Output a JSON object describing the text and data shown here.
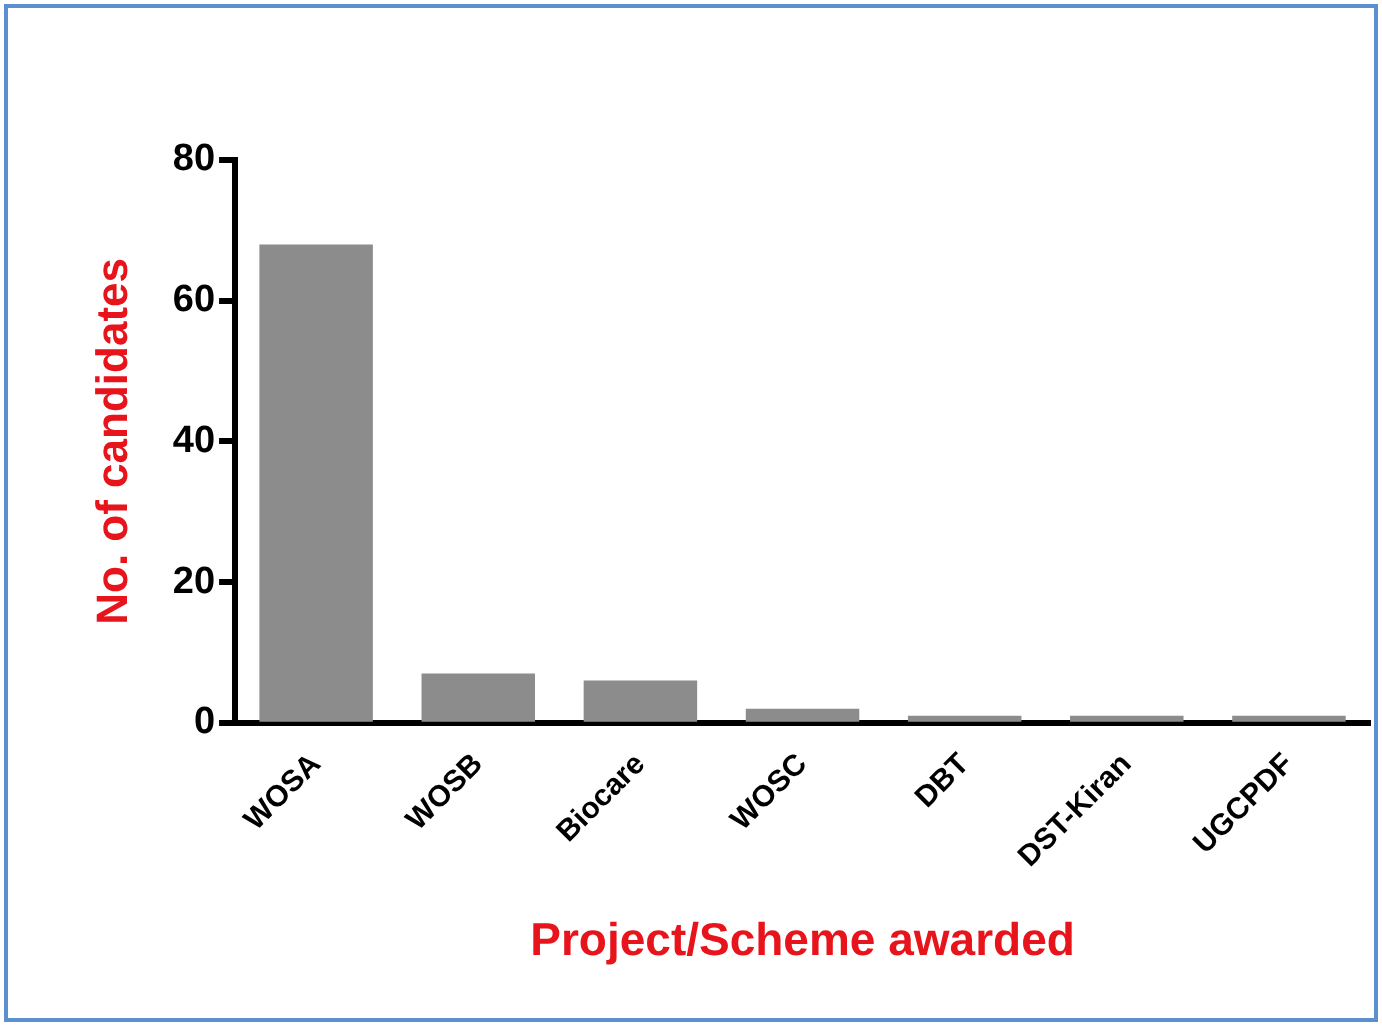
{
  "chart_data": {
    "type": "bar",
    "xlabel": "Project/Scheme awarded",
    "ylabel": "No. of candidates",
    "categories": [
      "WOSA",
      "WOSB",
      "Biocare",
      "WOSC",
      "DBT",
      "DST-Kiran",
      "UGCPDF"
    ],
    "values": [
      68,
      7,
      6,
      2,
      1,
      1,
      1
    ],
    "color": "#8c8c8c",
    "ylim": [
      0,
      80
    ],
    "yticks": [
      0,
      20,
      40,
      60,
      80
    ],
    "grid": false,
    "legend": false
  }
}
